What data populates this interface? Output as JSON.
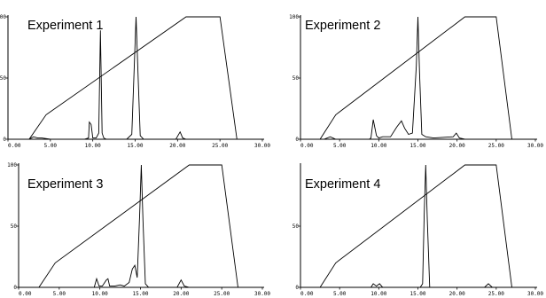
{
  "chart_data": [
    {
      "type": "line",
      "title": "Experiment 1",
      "xlim": [
        0,
        30
      ],
      "ylim": [
        0,
        100
      ],
      "x_ticks": [
        "0.00",
        "5.00",
        "10.00",
        "15.00",
        "20.00",
        "25.00",
        "30.00"
      ],
      "y_ticks": [
        "100",
        "50",
        "0"
      ],
      "series": [
        {
          "role": "gradient",
          "x": [
            0,
            2.5,
            4.5,
            21,
            25,
            27,
            30
          ],
          "y": [
            0,
            0,
            20,
            100,
            100,
            0,
            0
          ]
        },
        {
          "role": "trace",
          "x": [
            0,
            2.5,
            3,
            3.5,
            4,
            5,
            9,
            9.5,
            9.6,
            9.8,
            10,
            10.4,
            10.7,
            10.9,
            11.1,
            11.3,
            11.6,
            14,
            14.6,
            14.9,
            15.1,
            15.3,
            15.6,
            16,
            19.8,
            20.3,
            20.6,
            21,
            30
          ],
          "y": [
            0,
            0,
            2,
            1,
            1,
            0,
            0,
            1,
            14,
            12,
            1,
            1,
            5,
            89,
            5,
            1,
            0,
            0,
            4,
            60,
            100,
            60,
            3,
            0,
            0,
            6,
            1,
            0,
            0
          ]
        }
      ]
    },
    {
      "type": "line",
      "title": "Experiment 2",
      "xlim": [
        0,
        30
      ],
      "ylim": [
        0,
        100
      ],
      "x_ticks": [
        "0.00",
        "5.00",
        "10.00",
        "15.00",
        "20.00",
        "25.00",
        "30.00"
      ],
      "y_ticks": [
        "100",
        "50",
        "0"
      ],
      "series": [
        {
          "role": "gradient",
          "x": [
            0,
            2.5,
            4.5,
            21,
            25,
            27,
            30
          ],
          "y": [
            0,
            0,
            20,
            100,
            100,
            0,
            0
          ]
        },
        {
          "role": "trace",
          "x": [
            0,
            3,
            3.8,
            4.5,
            8.8,
            9,
            9.3,
            9.7,
            10,
            10.5,
            11.5,
            12.3,
            12.9,
            13.3,
            13.8,
            14.3,
            14.8,
            15,
            15.2,
            15.5,
            16,
            17,
            19.5,
            19.9,
            20.3,
            21,
            30
          ],
          "y": [
            0,
            0,
            2,
            0,
            0,
            1,
            16,
            3,
            1,
            2,
            2,
            10,
            15,
            9,
            4,
            5,
            60,
            100,
            55,
            4,
            2,
            1,
            2,
            5,
            1,
            0,
            0
          ]
        }
      ]
    },
    {
      "type": "line",
      "title": "Experiment 3",
      "xlim": [
        0,
        30
      ],
      "ylim": [
        0,
        100
      ],
      "x_ticks": [
        "0.00",
        "5.00",
        "10.00",
        "15.00",
        "20.00",
        "25.00",
        "30.00"
      ],
      "y_ticks": [
        "100",
        "50",
        "0"
      ],
      "series": [
        {
          "role": "gradient",
          "x": [
            0,
            2.5,
            4.5,
            21,
            25,
            27,
            30
          ],
          "y": [
            0,
            0,
            20,
            100,
            100,
            0,
            0
          ]
        },
        {
          "role": "trace",
          "x": [
            0,
            9.3,
            9.6,
            9.9,
            10.3,
            10.8,
            11,
            11.2,
            11.8,
            12.5,
            13,
            13.6,
            14,
            14.3,
            14.6,
            14.9,
            15.1,
            15.3,
            15.6,
            16,
            19.5,
            20,
            20.4,
            21,
            30
          ],
          "y": [
            0,
            0,
            7,
            1,
            1,
            6,
            7,
            1,
            1,
            2,
            1,
            4,
            15,
            18,
            8,
            60,
            100,
            55,
            3,
            0,
            0,
            6,
            1,
            0,
            0
          ]
        }
      ]
    },
    {
      "type": "line",
      "title": "Experiment 4",
      "xlim": [
        0,
        30
      ],
      "ylim": [
        0,
        100
      ],
      "x_ticks": [
        "0.00",
        "5.00",
        "10.00",
        "15.00",
        "20.00",
        "25.00",
        "30.00"
      ],
      "y_ticks": [
        "50",
        "0"
      ],
      "series": [
        {
          "role": "gradient",
          "x": [
            0,
            2.5,
            4.5,
            21,
            25,
            27,
            30
          ],
          "y": [
            0,
            0,
            20,
            100,
            100,
            0,
            0
          ]
        },
        {
          "role": "trace",
          "x": [
            0,
            9,
            9.3,
            9.7,
            10.1,
            10.5,
            15.3,
            15.6,
            15.8,
            16,
            16.2,
            16.5,
            23.5,
            24,
            24.5,
            30
          ],
          "y": [
            0,
            0,
            3,
            1,
            3,
            0,
            0,
            3,
            60,
            100,
            55,
            0,
            0,
            3,
            0,
            0
          ]
        }
      ]
    }
  ]
}
